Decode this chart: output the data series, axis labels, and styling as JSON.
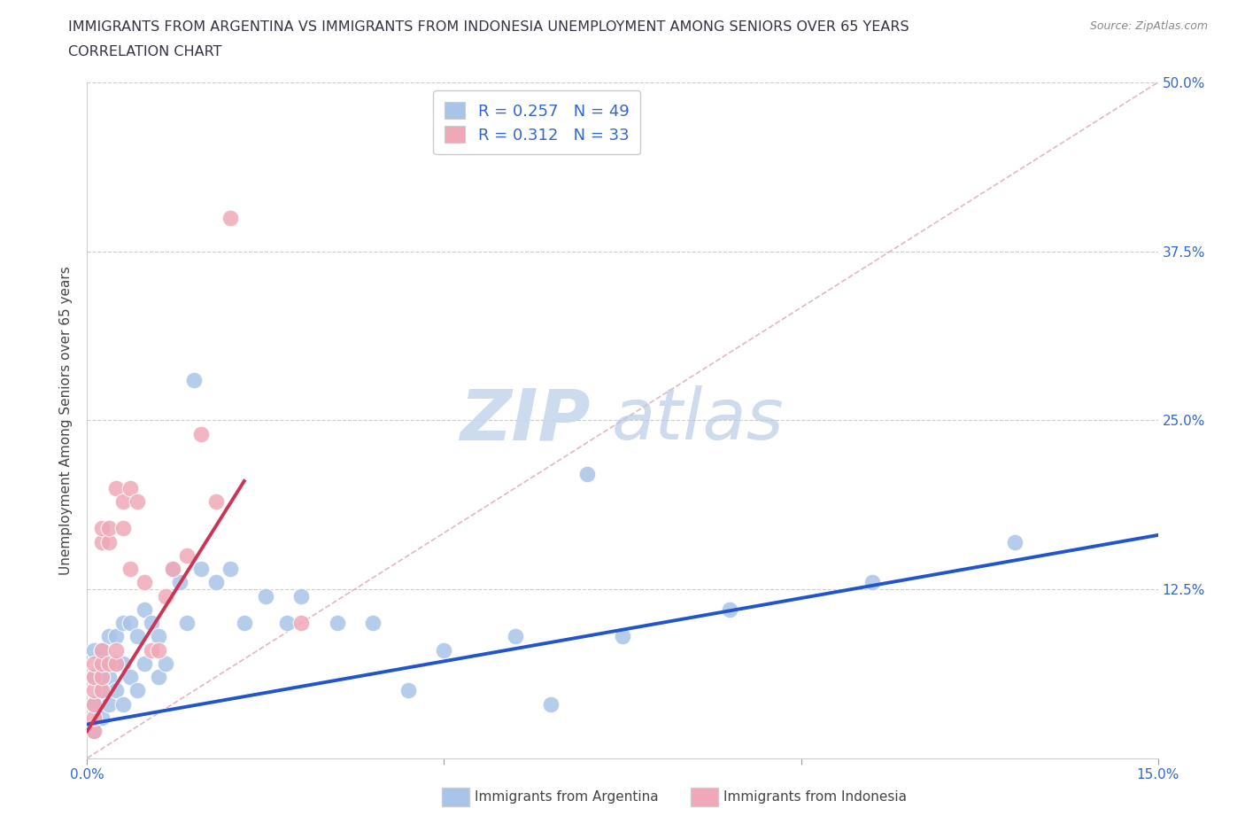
{
  "title_line1": "IMMIGRANTS FROM ARGENTINA VS IMMIGRANTS FROM INDONESIA UNEMPLOYMENT AMONG SENIORS OVER 65 YEARS",
  "title_line2": "CORRELATION CHART",
  "source": "Source: ZipAtlas.com",
  "ylabel": "Unemployment Among Seniors over 65 years",
  "xlim": [
    0,
    0.15
  ],
  "ylim": [
    0,
    0.5
  ],
  "yticks": [
    0.0,
    0.125,
    0.25,
    0.375,
    0.5
  ],
  "argentina_color": "#a8c4e8",
  "indonesia_color": "#f0a8b8",
  "argentina_line_color": "#2255cc",
  "indonesia_line_color": "#cc3355",
  "diag_line_color": "#e0b0b8",
  "R_argentina": 0.257,
  "N_argentina": 49,
  "R_indonesia": 0.312,
  "N_indonesia": 33,
  "legend_label_argentina": "Immigrants from Argentina",
  "legend_label_indonesia": "Immigrants from Indonesia",
  "watermark_zip": "ZIP",
  "watermark_atlas": "atlas",
  "argentina_x": [
    0.001,
    0.001,
    0.001,
    0.001,
    0.002,
    0.002,
    0.002,
    0.002,
    0.003,
    0.003,
    0.003,
    0.004,
    0.004,
    0.004,
    0.005,
    0.005,
    0.005,
    0.006,
    0.006,
    0.007,
    0.007,
    0.008,
    0.008,
    0.009,
    0.01,
    0.01,
    0.011,
    0.012,
    0.013,
    0.014,
    0.015,
    0.016,
    0.018,
    0.02,
    0.022,
    0.025,
    0.028,
    0.03,
    0.035,
    0.04,
    0.045,
    0.05,
    0.06,
    0.065,
    0.07,
    0.075,
    0.09,
    0.11,
    0.13
  ],
  "argentina_y": [
    0.02,
    0.04,
    0.06,
    0.08,
    0.03,
    0.05,
    0.06,
    0.08,
    0.04,
    0.06,
    0.09,
    0.05,
    0.07,
    0.09,
    0.04,
    0.07,
    0.1,
    0.06,
    0.1,
    0.05,
    0.09,
    0.07,
    0.11,
    0.1,
    0.06,
    0.09,
    0.07,
    0.14,
    0.13,
    0.1,
    0.28,
    0.14,
    0.13,
    0.14,
    0.1,
    0.12,
    0.1,
    0.12,
    0.1,
    0.1,
    0.05,
    0.08,
    0.09,
    0.04,
    0.21,
    0.09,
    0.11,
    0.13,
    0.16
  ],
  "indonesia_x": [
    0.001,
    0.001,
    0.001,
    0.001,
    0.001,
    0.001,
    0.002,
    0.002,
    0.002,
    0.002,
    0.002,
    0.002,
    0.003,
    0.003,
    0.003,
    0.004,
    0.004,
    0.004,
    0.005,
    0.005,
    0.006,
    0.006,
    0.007,
    0.008,
    0.009,
    0.01,
    0.011,
    0.012,
    0.014,
    0.016,
    0.018,
    0.02,
    0.03
  ],
  "indonesia_y": [
    0.02,
    0.03,
    0.04,
    0.05,
    0.06,
    0.07,
    0.05,
    0.06,
    0.07,
    0.08,
    0.16,
    0.17,
    0.07,
    0.16,
    0.17,
    0.07,
    0.08,
    0.2,
    0.17,
    0.19,
    0.14,
    0.2,
    0.19,
    0.13,
    0.08,
    0.08,
    0.12,
    0.14,
    0.15,
    0.24,
    0.19,
    0.4,
    0.1
  ],
  "arg_line_x": [
    0.0,
    0.15
  ],
  "arg_line_y": [
    0.025,
    0.165
  ],
  "ind_line_x": [
    0.0,
    0.022
  ],
  "ind_line_y": [
    0.02,
    0.205
  ]
}
